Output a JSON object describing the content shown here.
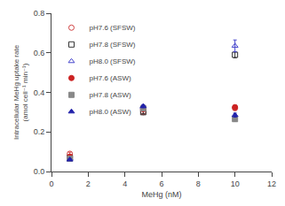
{
  "chart_data": {
    "type": "scatter",
    "xlabel": "MeHg (nM)",
    "ylabel": "Intracellular MeHg uptake rate\n(amol cell⁻¹ min⁻¹)",
    "xlim": [
      0,
      12
    ],
    "ylim": [
      0,
      0.8
    ],
    "xticks": [
      0,
      2,
      4,
      6,
      8,
      10,
      12
    ],
    "yticks": [
      {
        "value": 0.0,
        "label": "0.0"
      },
      0.2,
      0.4,
      0.6,
      0.8
    ],
    "grid": false,
    "legend": "upper left",
    "series": [
      {
        "name": "pH7.6 (SFSW)",
        "color": "#d04040",
        "marker": "circle-open",
        "x": [
          1,
          5,
          10
        ],
        "values": [
          0.09,
          0.3,
          0.32
        ],
        "yerr": [
          0.008,
          0.008,
          0.01
        ]
      },
      {
        "name": "pH7.8 (SFSW)",
        "color": "#333333",
        "marker": "square-open",
        "x": [
          1,
          5,
          10
        ],
        "values": [
          0.07,
          0.3,
          0.59
        ],
        "yerr": [
          0.004,
          0.008,
          0.015
        ]
      },
      {
        "name": "pH8.0 (SFSW)",
        "color": "#4444cc",
        "marker": "triangle-up-open",
        "x": [
          1,
          5,
          10
        ],
        "values": [
          0.065,
          0.325,
          0.635
        ],
        "yerr": [
          0.004,
          0.008,
          0.03
        ]
      },
      {
        "name": "pH7.6 (ASW)",
        "color": "#cc2222",
        "marker": "circle",
        "x": [
          1,
          5,
          10
        ],
        "values": [
          0.075,
          0.315,
          0.325
        ],
        "yerr": [
          0.004,
          0.008,
          0.01
        ]
      },
      {
        "name": "pH7.8 (ASW)",
        "color": "#888888",
        "marker": "square",
        "x": [
          1,
          5,
          10
        ],
        "values": [
          0.065,
          0.32,
          0.265
        ],
        "yerr": [
          0.004,
          0.008,
          0.012
        ]
      },
      {
        "name": "pH8.0 (ASW)",
        "color": "#2222aa",
        "marker": "triangle-up",
        "x": [
          1,
          5,
          10
        ],
        "values": [
          0.06,
          0.33,
          0.285
        ],
        "yerr": [
          0.004,
          0.008,
          0.01
        ]
      }
    ]
  }
}
